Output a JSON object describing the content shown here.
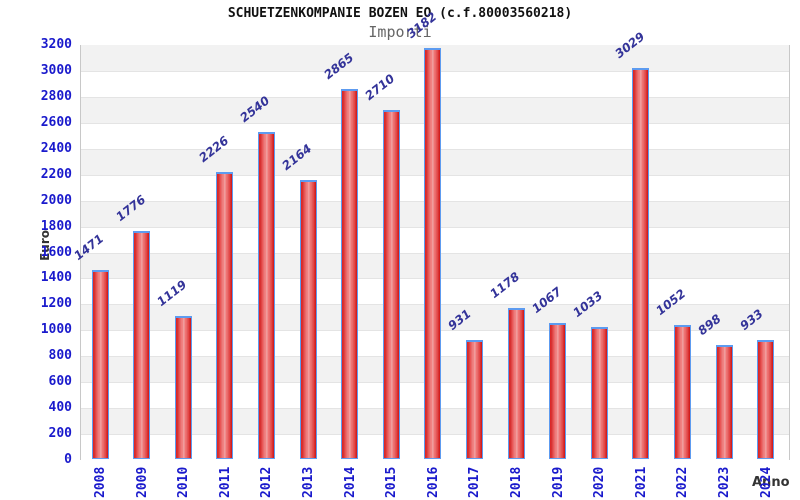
{
  "chart_data": {
    "type": "bar",
    "title": "SCHUETZENKOMPANIE BOZEN EO (c.f.80003560218)",
    "subtitle": "Importi",
    "xlabel": "Anno",
    "ylabel": "Euro",
    "categories": [
      "2008",
      "2009",
      "2010",
      "2011",
      "2012",
      "2013",
      "2014",
      "2015",
      "2016",
      "2017",
      "2018",
      "2019",
      "2020",
      "2021",
      "2022",
      "2023",
      "2024"
    ],
    "values": [
      1471,
      1776,
      1119,
      2226,
      2540,
      2164,
      2865,
      2710,
      3182,
      931,
      1178,
      1067,
      1033,
      3029,
      1052,
      898,
      933
    ],
    "ylim": [
      0,
      3200
    ],
    "ytick_step": 200,
    "legend": "none",
    "grid": "horizontal-bands-alternating",
    "value_labels": "above-bars-rotated",
    "colors": {
      "bar_edge_dark": "#d01515",
      "bar_center_light": "#f2a0a0",
      "bar_border": "#5d9bf0",
      "axis_tick_label": "#1a1acc",
      "value_label": "#333399",
      "band_shaded": "#f2f2f2",
      "band_plain": "#ffffff",
      "gridline": "#e4e4e4",
      "plot_border": "#c8c8c8",
      "title": "#111111",
      "subtitle": "#666666",
      "axis_title": "#333333"
    }
  }
}
